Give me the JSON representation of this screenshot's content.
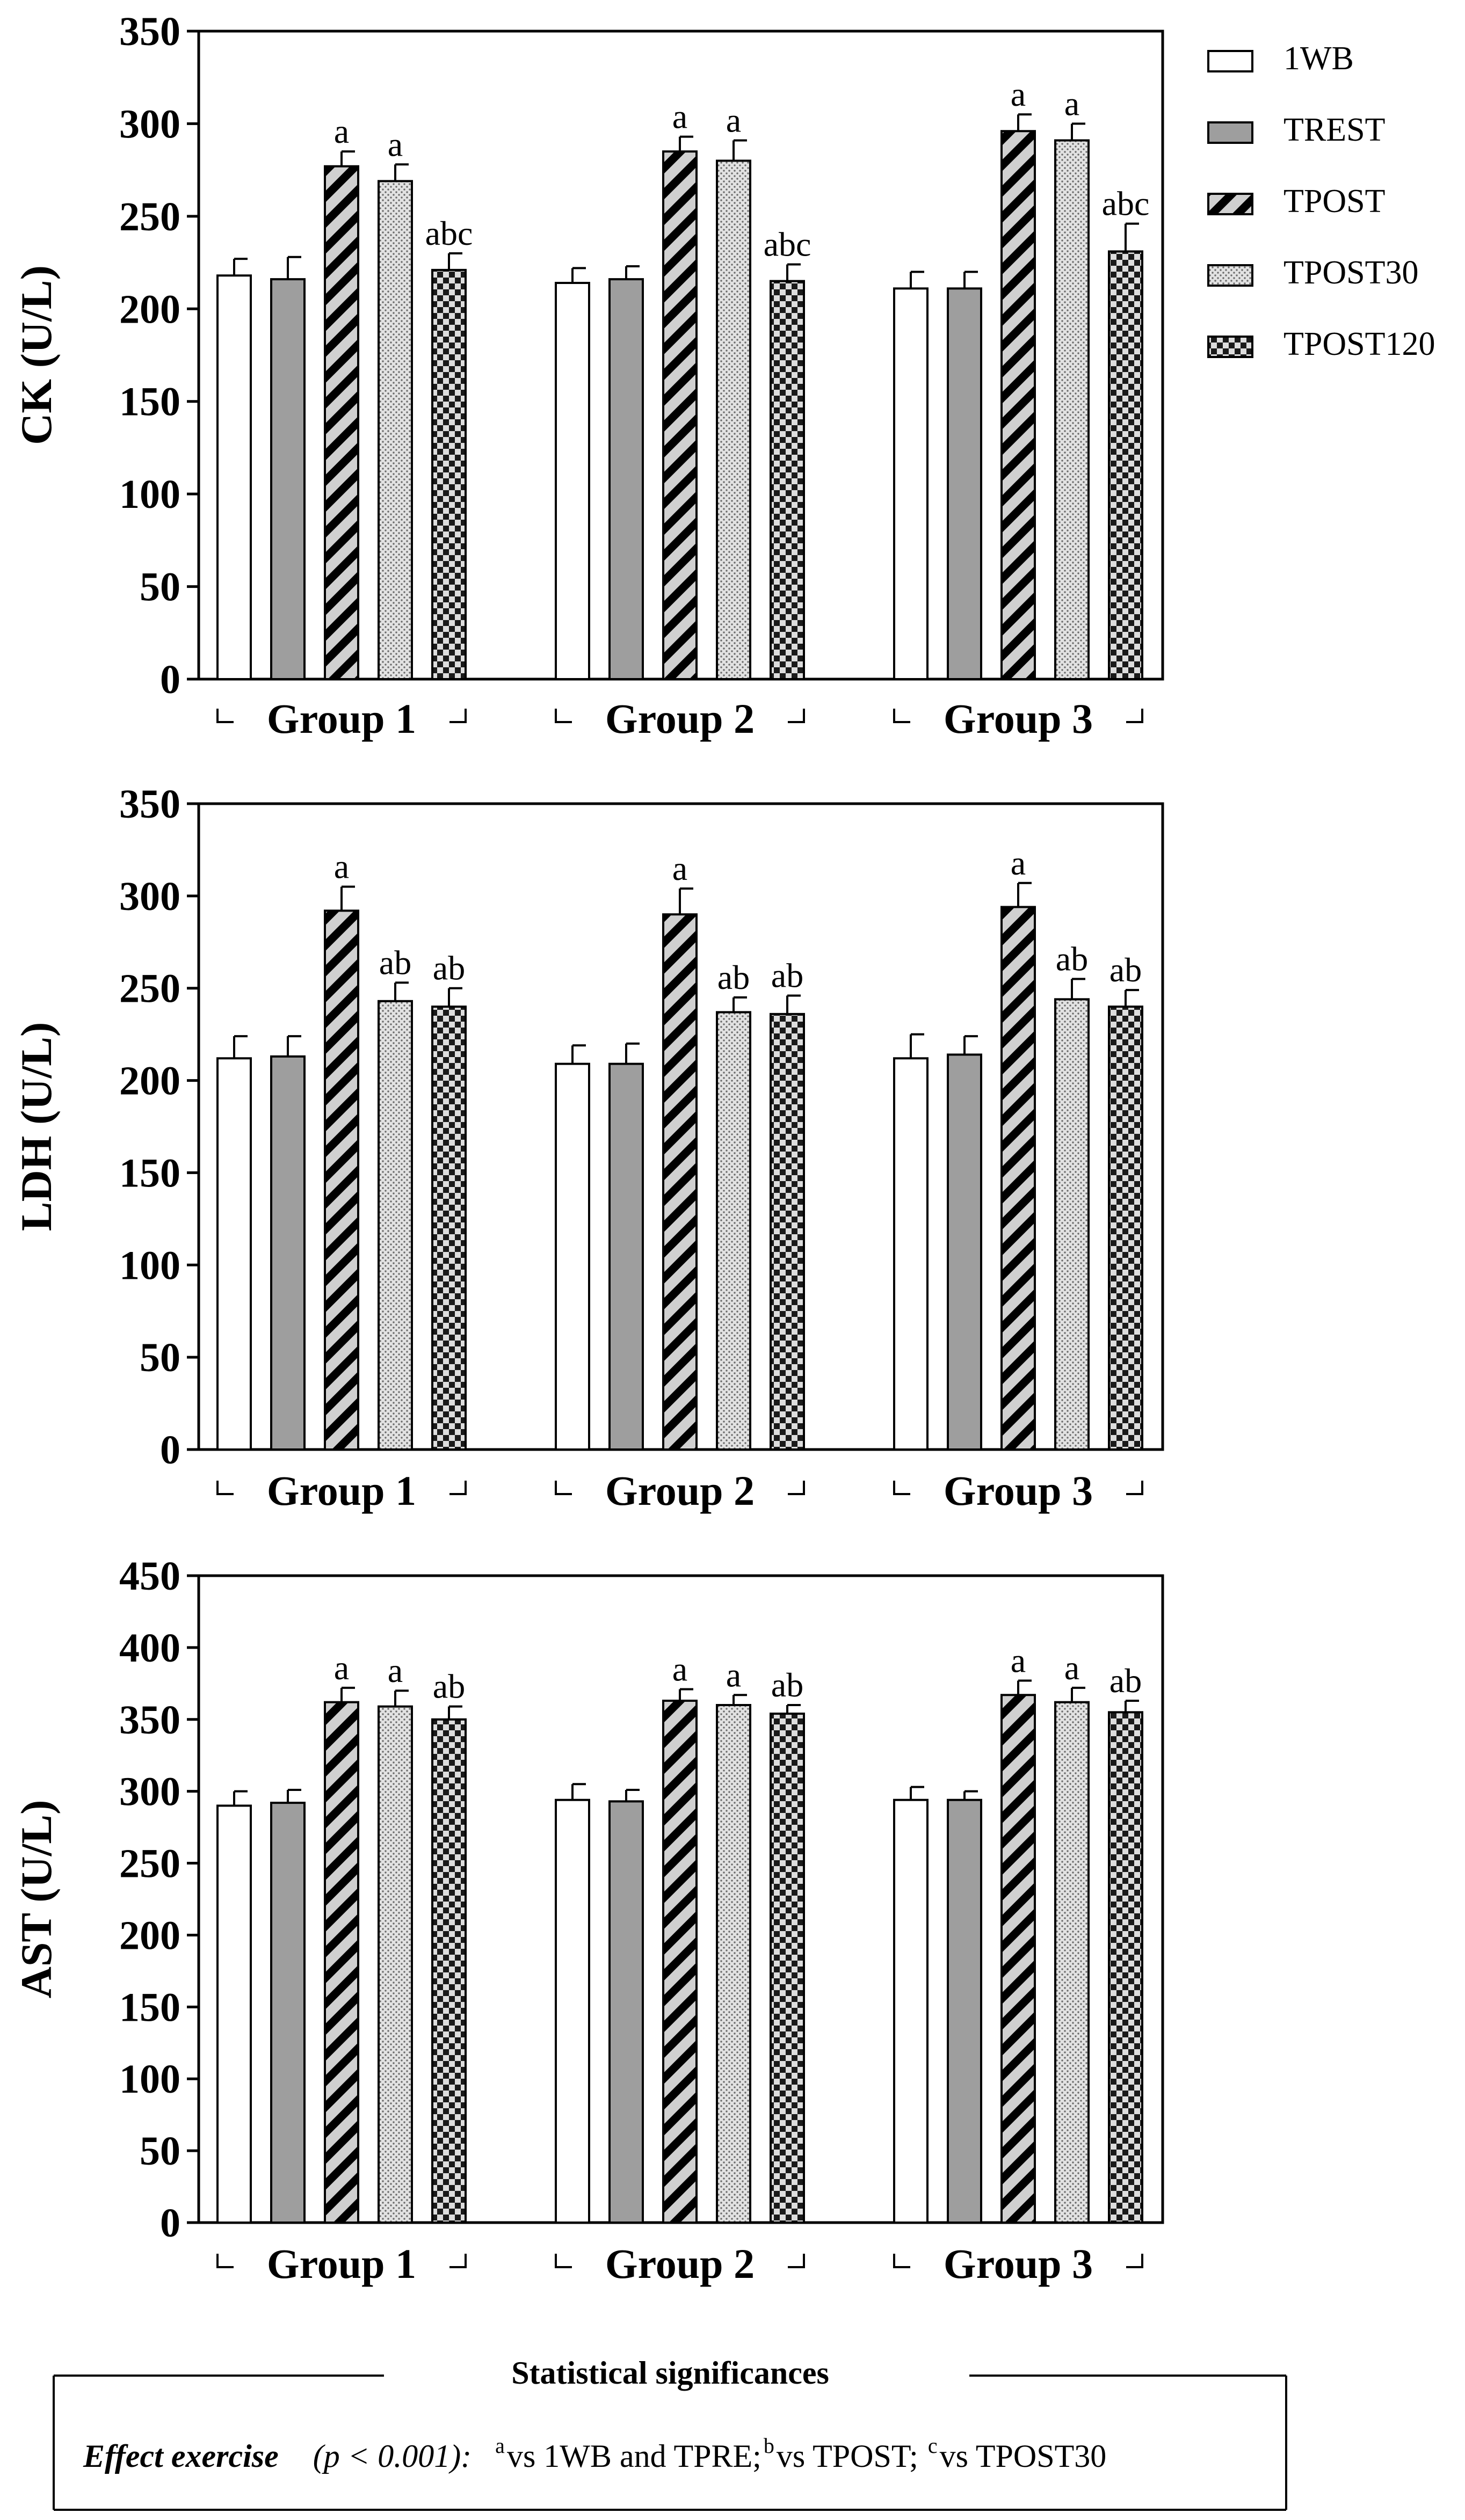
{
  "chart_data": [
    {
      "type": "bar",
      "ylabel": "CK (U/L)",
      "ylim": [
        0,
        350
      ],
      "yticks": [
        0,
        50,
        100,
        150,
        200,
        250,
        300,
        350
      ],
      "groups": [
        "Group 1",
        "Group 2",
        "Group 3"
      ],
      "series": [
        {
          "name": "1WB",
          "values": [
            218,
            214,
            211
          ],
          "errors": [
            9,
            8,
            9
          ],
          "sig": [
            "",
            "",
            ""
          ]
        },
        {
          "name": "TREST",
          "values": [
            216,
            216,
            211
          ],
          "errors": [
            12,
            7,
            9
          ],
          "sig": [
            "",
            "",
            ""
          ]
        },
        {
          "name": "TPOST",
          "values": [
            277,
            285,
            296
          ],
          "errors": [
            8,
            8,
            9
          ],
          "sig": [
            "a",
            "a",
            "a"
          ]
        },
        {
          "name": "TPOST30",
          "values": [
            269,
            280,
            291
          ],
          "errors": [
            9,
            11,
            9
          ],
          "sig": [
            "a",
            "a",
            "a"
          ]
        },
        {
          "name": "TPOST120",
          "values": [
            221,
            215,
            231
          ],
          "errors": [
            9,
            9,
            15
          ],
          "sig": [
            "abc",
            "abc",
            "abc"
          ]
        }
      ]
    },
    {
      "type": "bar",
      "ylabel": "LDH (U/L)",
      "ylim": [
        0,
        350
      ],
      "yticks": [
        0,
        50,
        100,
        150,
        200,
        250,
        300,
        350
      ],
      "groups": [
        "Group 1",
        "Group 2",
        "Group 3"
      ],
      "series": [
        {
          "name": "1WB",
          "values": [
            212,
            209,
            212
          ],
          "errors": [
            12,
            10,
            13
          ],
          "sig": [
            "",
            "",
            ""
          ]
        },
        {
          "name": "TREST",
          "values": [
            213,
            209,
            214
          ],
          "errors": [
            11,
            11,
            10
          ],
          "sig": [
            "",
            "",
            ""
          ]
        },
        {
          "name": "TPOST",
          "values": [
            292,
            290,
            294
          ],
          "errors": [
            13,
            14,
            13
          ],
          "sig": [
            "a",
            "a",
            "a"
          ]
        },
        {
          "name": "TPOST30",
          "values": [
            243,
            237,
            244
          ],
          "errors": [
            10,
            8,
            11
          ],
          "sig": [
            "ab",
            "ab",
            "ab"
          ]
        },
        {
          "name": "TPOST120",
          "values": [
            240,
            236,
            240
          ],
          "errors": [
            10,
            10,
            9
          ],
          "sig": [
            "ab",
            "ab",
            "ab"
          ]
        }
      ]
    },
    {
      "type": "bar",
      "ylabel": "AST (U/L)",
      "ylim": [
        0,
        450
      ],
      "yticks": [
        0,
        50,
        100,
        150,
        200,
        250,
        300,
        350,
        400,
        450
      ],
      "groups": [
        "Group 1",
        "Group 2",
        "Group 3"
      ],
      "series": [
        {
          "name": "1WB",
          "values": [
            290,
            294,
            294
          ],
          "errors": [
            10,
            11,
            9
          ],
          "sig": [
            "",
            "",
            ""
          ]
        },
        {
          "name": "TREST",
          "values": [
            292,
            293,
            294
          ],
          "errors": [
            9,
            8,
            6
          ],
          "sig": [
            "",
            "",
            ""
          ]
        },
        {
          "name": "TPOST",
          "values": [
            362,
            363,
            367
          ],
          "errors": [
            10,
            8,
            10
          ],
          "sig": [
            "a",
            "a",
            "a"
          ]
        },
        {
          "name": "TPOST30",
          "values": [
            359,
            360,
            362
          ],
          "errors": [
            11,
            7,
            10
          ],
          "sig": [
            "a",
            "a",
            "a"
          ]
        },
        {
          "name": "TPOST120",
          "values": [
            350,
            354,
            355
          ],
          "errors": [
            9,
            6,
            8
          ],
          "sig": [
            "ab",
            "ab",
            "ab"
          ]
        }
      ]
    }
  ],
  "legend": {
    "items": [
      {
        "label": "1WB",
        "pattern": "empty"
      },
      {
        "label": "TREST",
        "pattern": "gray"
      },
      {
        "label": "TPOST",
        "pattern": "diagonal-stripes"
      },
      {
        "label": "TPOST30",
        "pattern": "dots"
      },
      {
        "label": "TPOST120",
        "pattern": "checker"
      }
    ]
  },
  "colors": {
    "gray_fill": "#9e9e9e",
    "stripe_light": "#d0d0d0",
    "dots_bg": "#d9d9d9",
    "checker_light": "#dddddd",
    "ink": "#000000"
  },
  "footnote": {
    "title": "Statistical significances",
    "effect_label": "Effect exercise",
    "p_text": "(p < 0.001):",
    "sup_a": "a",
    "text_a": "vs 1WB and TPRE;",
    "sup_b": "b",
    "text_b": "vs TPOST;",
    "sup_c": "c",
    "text_c": "vs TPOST30"
  }
}
